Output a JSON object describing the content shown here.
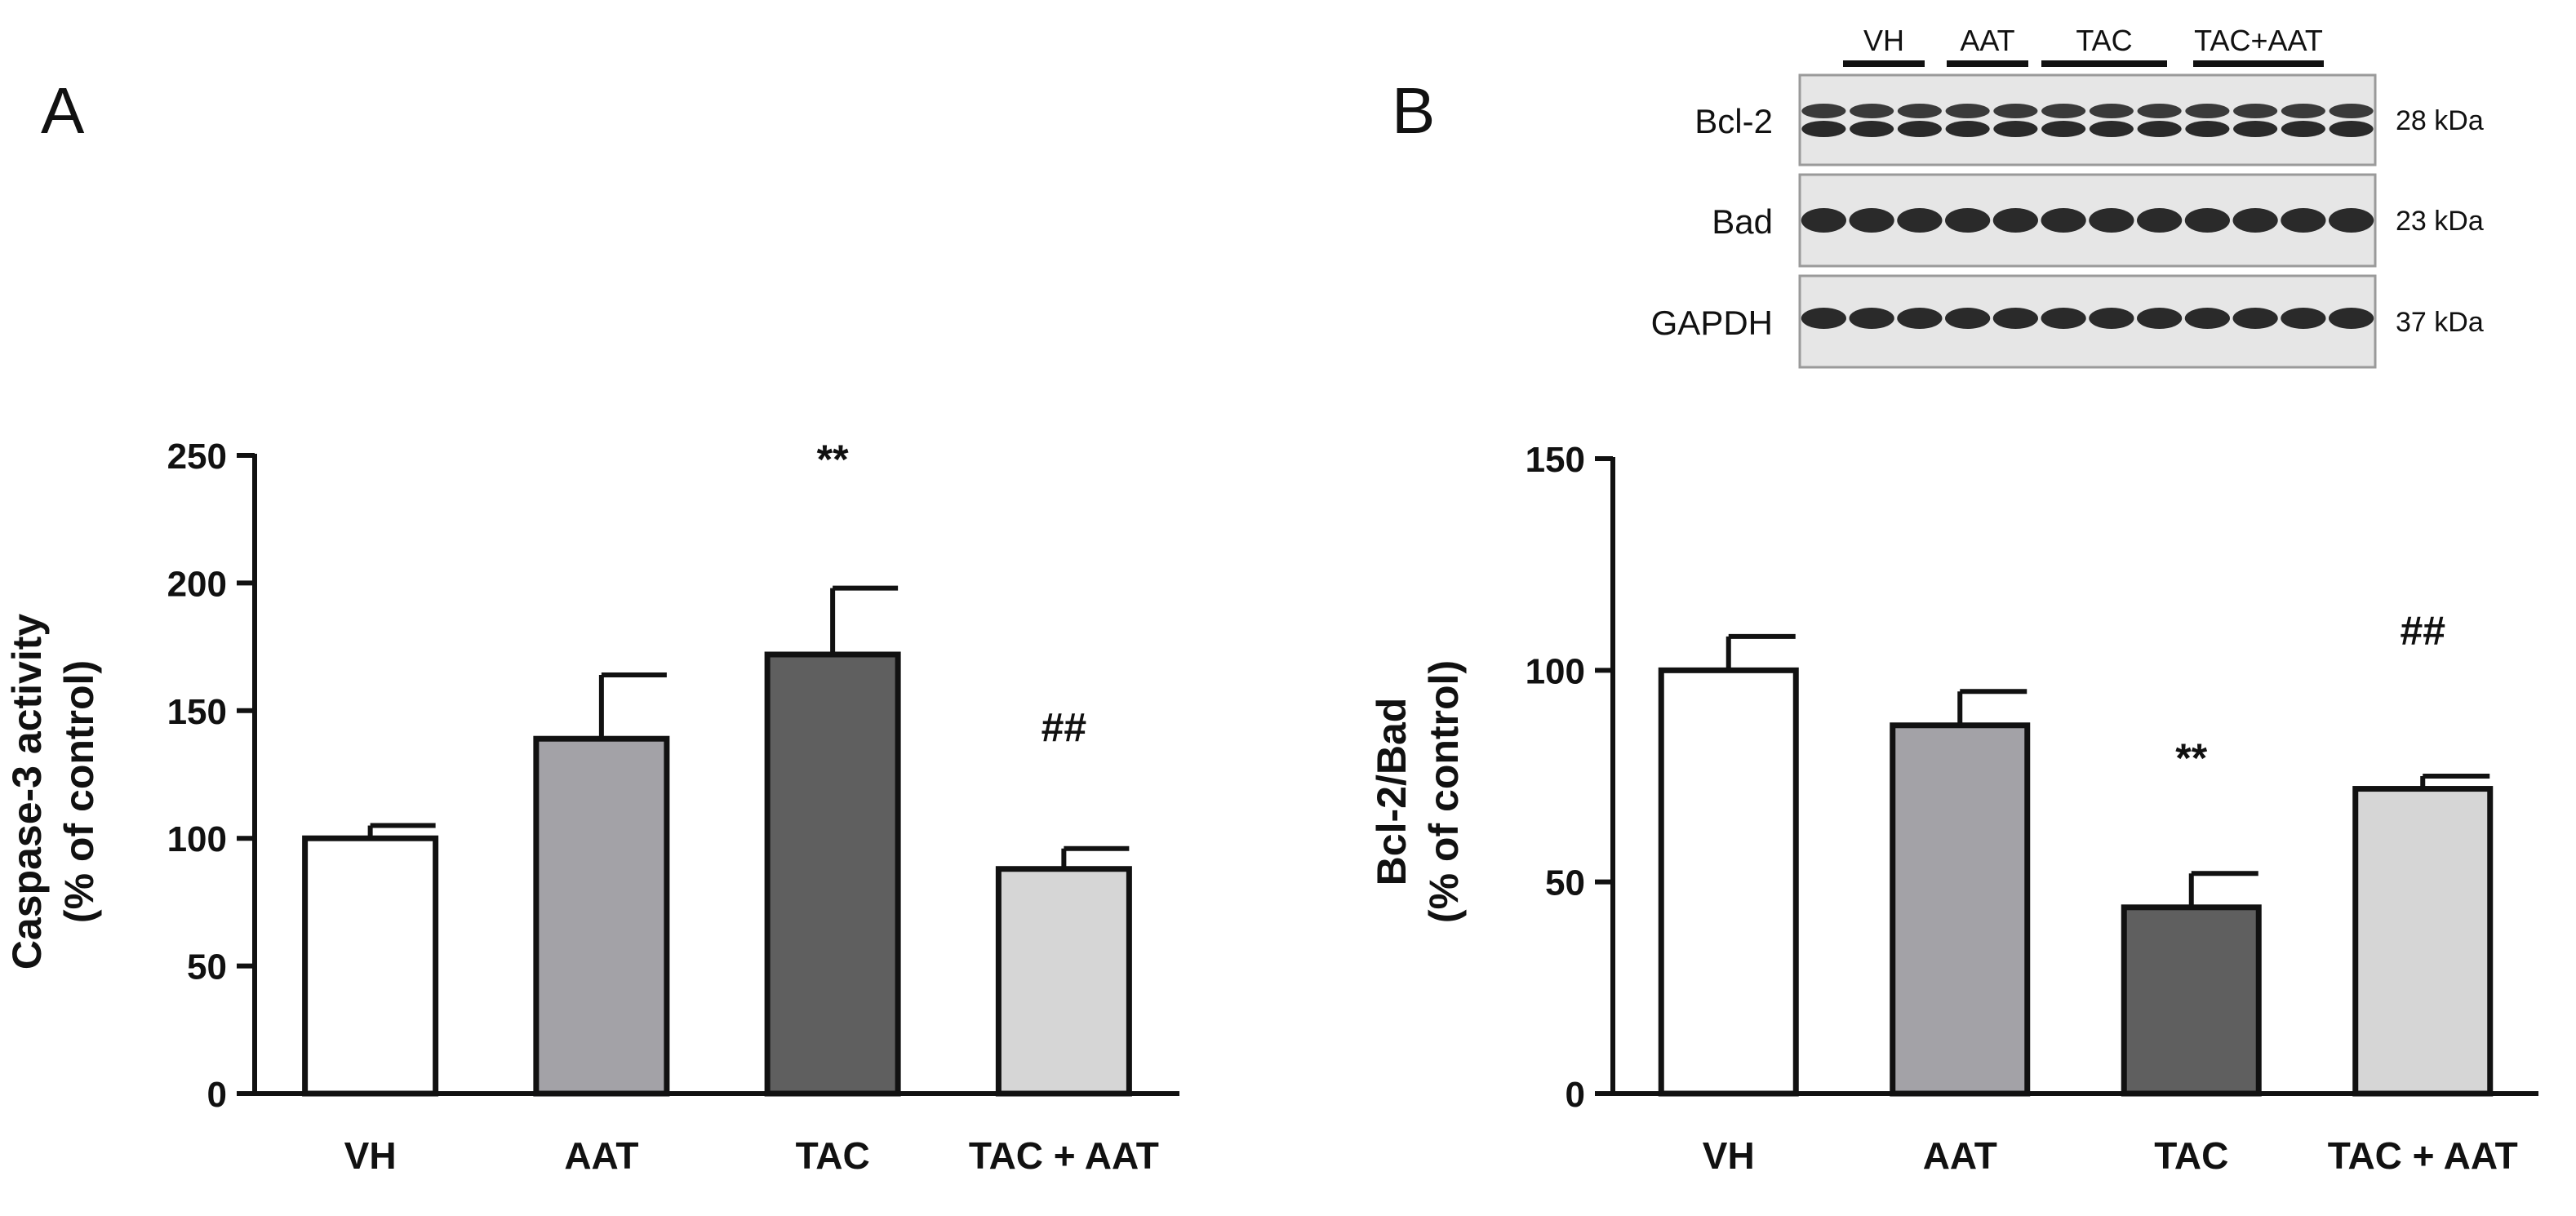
{
  "panels": {
    "a_label": "A",
    "b_label": "B"
  },
  "colors": {
    "axis": "#111111",
    "bar_outline": "#111111",
    "vh": "#ffffff",
    "aat": "#a3a2a7",
    "tac": "#5f5f5f",
    "tac_aat": "#d6d6d6",
    "blot_background": "#e6e6e6",
    "band": "#2a2a2a"
  },
  "chart_data": [
    {
      "type": "bar",
      "panel": "A",
      "title": "",
      "ylabel_line1": "Caspase-3 activity",
      "ylabel_line2": "(% of control)",
      "xlabel": "",
      "categories": [
        "VH",
        "AAT",
        "TAC",
        "TAC + AAT"
      ],
      "values": [
        100,
        139,
        172,
        88
      ],
      "errors": [
        5,
        25,
        26,
        8
      ],
      "ylim": [
        0,
        250
      ],
      "yticks": [
        0,
        50,
        100,
        150,
        200,
        250
      ],
      "ytick_labels": [
        "0",
        "50",
        "100",
        "150",
        "200",
        "250"
      ],
      "annotations": [
        "",
        "",
        "**",
        "##"
      ],
      "annotation_y": [
        null,
        null,
        243,
        138
      ],
      "grid": false,
      "legend": "none"
    },
    {
      "type": "bar",
      "panel": "B",
      "title": "",
      "ylabel_line1": "Bcl-2/Bad",
      "ylabel_line2": "(% of control)",
      "xlabel": "",
      "categories": [
        "VH",
        "AAT",
        "TAC",
        "TAC + AAT"
      ],
      "values": [
        100,
        87,
        44,
        72
      ],
      "errors": [
        8,
        8,
        8,
        3
      ],
      "ylim": [
        0,
        150
      ],
      "yticks": [
        0,
        50,
        100,
        150
      ],
      "ytick_labels": [
        "0",
        "50",
        "100",
        "150"
      ],
      "annotations": [
        "",
        "",
        "**",
        "##"
      ],
      "annotation_y": [
        null,
        null,
        76,
        106
      ],
      "grid": false,
      "legend": "none"
    }
  ],
  "blot": {
    "groups": [
      "VH",
      "AAT",
      "TAC",
      "TAC+AAT"
    ],
    "proteins": [
      "Bcl-2",
      "Bad",
      "GAPDH"
    ],
    "sizes": [
      "28 kDa",
      "23 kDa",
      "37 kDa"
    ]
  }
}
